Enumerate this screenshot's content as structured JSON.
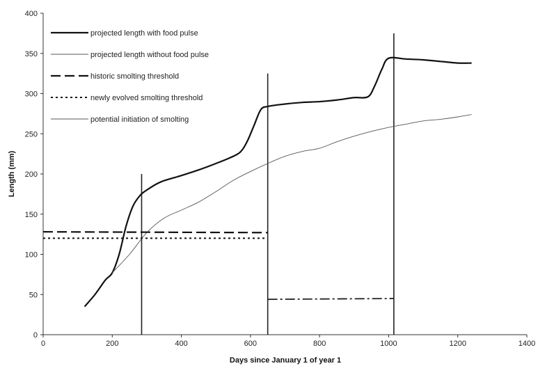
{
  "chart_data": {
    "type": "line",
    "title": "",
    "xlabel": "Days since January 1 of year 1",
    "ylabel": "Length (mm)",
    "xlim": [
      0,
      1400
    ],
    "ylim": [
      0,
      400
    ],
    "x_ticks": [
      0,
      200,
      400,
      600,
      800,
      1000,
      1200,
      1400
    ],
    "y_ticks": [
      0,
      50,
      100,
      150,
      200,
      250,
      300,
      350,
      400
    ],
    "grid": false,
    "legend_position": "top-left",
    "series": [
      {
        "name": "projected length with food pulse",
        "style": "thick-solid",
        "points": [
          [
            120,
            35
          ],
          [
            150,
            50
          ],
          [
            180,
            68
          ],
          [
            200,
            77
          ],
          [
            220,
            100
          ],
          [
            240,
            135
          ],
          [
            260,
            160
          ],
          [
            280,
            173
          ],
          [
            300,
            180
          ],
          [
            340,
            190
          ],
          [
            400,
            198
          ],
          [
            450,
            205
          ],
          [
            500,
            213
          ],
          [
            540,
            220
          ],
          [
            570,
            227
          ],
          [
            590,
            240
          ],
          [
            610,
            260
          ],
          [
            630,
            280
          ],
          [
            650,
            284
          ],
          [
            700,
            287
          ],
          [
            750,
            289
          ],
          [
            800,
            290
          ],
          [
            850,
            292
          ],
          [
            900,
            295
          ],
          [
            940,
            296
          ],
          [
            960,
            310
          ],
          [
            980,
            330
          ],
          [
            1000,
            344
          ],
          [
            1050,
            343
          ],
          [
            1100,
            342
          ],
          [
            1150,
            340
          ],
          [
            1200,
            338
          ],
          [
            1240,
            338
          ]
        ]
      },
      {
        "name": "projected length without food pulse",
        "style": "thin-solid",
        "points": [
          [
            200,
            77
          ],
          [
            250,
            100
          ],
          [
            300,
            127
          ],
          [
            350,
            145
          ],
          [
            400,
            155
          ],
          [
            450,
            165
          ],
          [
            500,
            178
          ],
          [
            550,
            192
          ],
          [
            600,
            203
          ],
          [
            650,
            213
          ],
          [
            700,
            222
          ],
          [
            750,
            228
          ],
          [
            800,
            232
          ],
          [
            850,
            240
          ],
          [
            900,
            247
          ],
          [
            950,
            253
          ],
          [
            1000,
            258
          ],
          [
            1050,
            262
          ],
          [
            1100,
            266
          ],
          [
            1150,
            268
          ],
          [
            1200,
            271
          ],
          [
            1240,
            274
          ]
        ]
      },
      {
        "name": "historic  smolting threshold",
        "style": "long-dash",
        "points": [
          [
            0,
            128
          ],
          [
            650,
            127
          ]
        ]
      },
      {
        "name": "newly evolved smolting threshold",
        "style": "dotted",
        "points": [
          [
            0,
            120
          ],
          [
            650,
            120
          ]
        ]
      },
      {
        "name": "dash-dot segment",
        "style": "dash-dot",
        "points": [
          [
            650,
            44
          ],
          [
            1015,
            45
          ]
        ]
      }
    ],
    "vertical_lines": [
      {
        "x": 285,
        "y_top": 200
      },
      {
        "x": 650,
        "y_top": 325
      },
      {
        "x": 1015,
        "y_top": 375
      }
    ],
    "legend": [
      {
        "label": "projected length with food pulse",
        "style": "thick-solid"
      },
      {
        "label": "projected length without food pulse",
        "style": "thin-solid"
      },
      {
        "label": "historic  smolting threshold",
        "style": "long-dash"
      },
      {
        "label": "newly evolved smolting threshold",
        "style": "dotted"
      },
      {
        "label": "potential initiation of smolting",
        "style": "thin-solid"
      }
    ]
  }
}
